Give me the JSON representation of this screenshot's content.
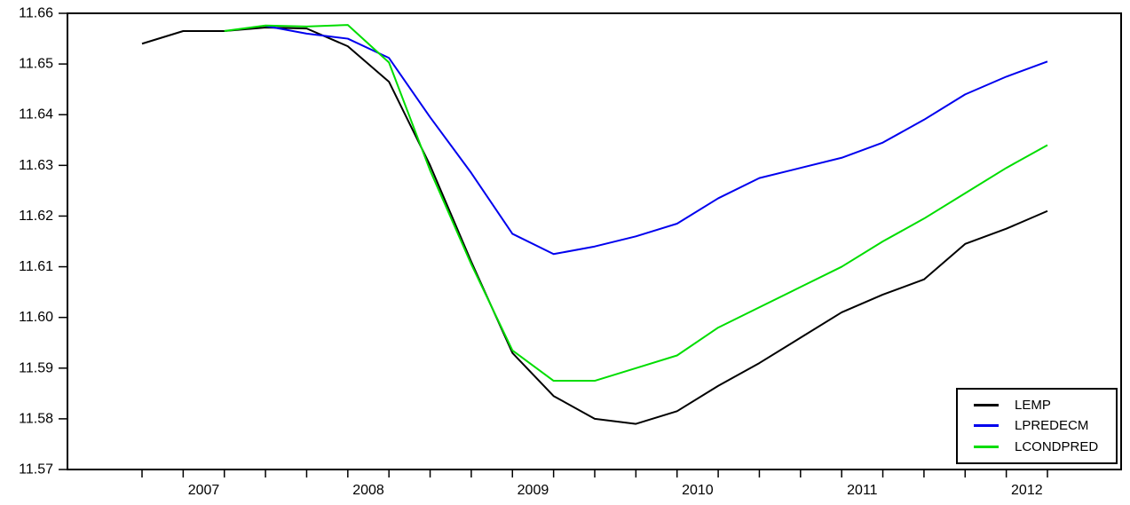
{
  "chart_data": {
    "type": "line",
    "title": "",
    "xlabel": "",
    "ylabel": "",
    "grid": false,
    "legend_position": "bottom-right",
    "x_frequency": "quarterly",
    "categories": [
      "2007Q1",
      "2007Q2",
      "2007Q3",
      "2007Q4",
      "2008Q1",
      "2008Q2",
      "2008Q3",
      "2008Q4",
      "2009Q1",
      "2009Q2",
      "2009Q3",
      "2009Q4",
      "2010Q1",
      "2010Q2",
      "2010Q3",
      "2010Q4",
      "2011Q1",
      "2011Q2",
      "2011Q3",
      "2011Q4",
      "2012Q1",
      "2012Q2",
      "2012Q3"
    ],
    "x_year_labels": [
      "2007",
      "2008",
      "2009",
      "2010",
      "2011",
      "2012"
    ],
    "y_tick_labels": [
      "11.57",
      "11.58",
      "11.59",
      "11.60",
      "11.61",
      "11.62",
      "11.63",
      "11.64",
      "11.65",
      "11.66"
    ],
    "ylim": [
      11.57,
      11.66
    ],
    "y_tick_step": 0.01,
    "series": [
      {
        "name": "LEMP",
        "color": "#000000",
        "values": [
          11.654,
          11.6565,
          11.6565,
          11.6572,
          11.657,
          11.6535,
          11.6465,
          11.63,
          11.611,
          11.593,
          11.5845,
          11.58,
          11.579,
          11.5815,
          11.5865,
          11.591,
          11.596,
          11.601,
          11.6045,
          11.6075,
          11.6145,
          11.6175,
          11.621
        ]
      },
      {
        "name": "LPREDECM",
        "color": "#0000ee",
        "values": [
          null,
          null,
          null,
          11.6575,
          11.656,
          11.655,
          11.6512,
          11.6395,
          11.6285,
          11.6165,
          11.6125,
          11.614,
          11.616,
          11.6185,
          11.6235,
          11.6275,
          11.6295,
          11.6315,
          11.6345,
          11.639,
          11.644,
          11.6475,
          11.6505
        ]
      },
      {
        "name": "LCONDPRED",
        "color": "#00dd00",
        "values": [
          null,
          null,
          11.6565,
          11.6576,
          11.6574,
          11.6577,
          11.6503,
          11.629,
          11.6105,
          11.5935,
          11.5875,
          11.5875,
          11.59,
          11.5925,
          11.598,
          11.602,
          11.606,
          11.61,
          11.615,
          11.6195,
          11.6245,
          11.6295,
          11.634
        ]
      }
    ]
  }
}
